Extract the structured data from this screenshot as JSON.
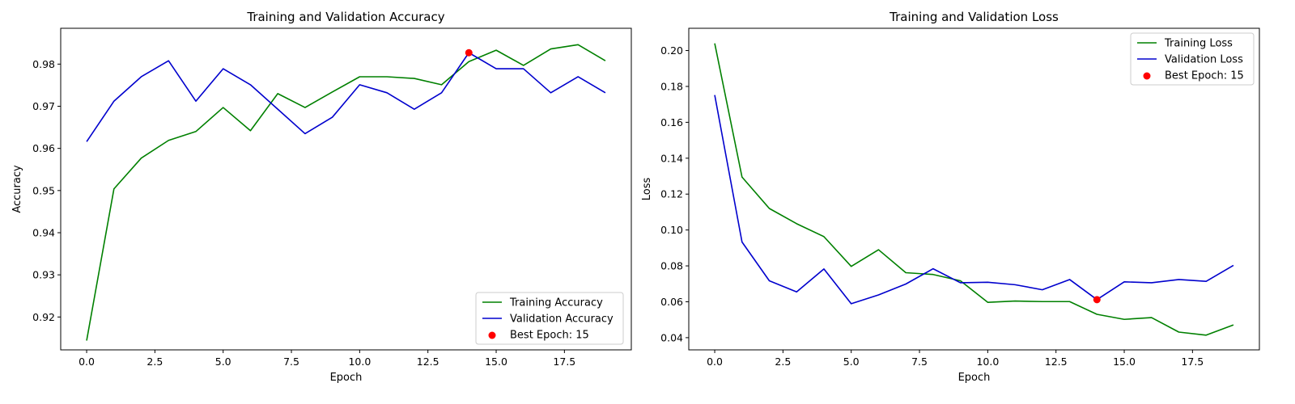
{
  "chart_data": [
    {
      "type": "line",
      "title": "Training and Validation Accuracy",
      "xlabel": "Epoch",
      "ylabel": "Accuracy",
      "xlim": [
        -0.95,
        19.95
      ],
      "ylim": [
        0.9122,
        0.9885
      ],
      "xticks": [
        0,
        2.5,
        5,
        7.5,
        10,
        12.5,
        15,
        17.5
      ],
      "xtick_labels": [
        "0.0",
        "2.5",
        "5.0",
        "7.5",
        "10.0",
        "12.5",
        "15.0",
        "17.5"
      ],
      "yticks": [
        0.92,
        0.93,
        0.94,
        0.95,
        0.96,
        0.97,
        0.98
      ],
      "ytick_labels": [
        "0.92",
        "0.93",
        "0.94",
        "0.95",
        "0.96",
        "0.97",
        "0.98"
      ],
      "legend_position": "bottom-right",
      "grid": false,
      "x": [
        0,
        1,
        2,
        3,
        4,
        5,
        6,
        7,
        8,
        9,
        10,
        11,
        12,
        13,
        14,
        15,
        16,
        17,
        18,
        19
      ],
      "series": [
        {
          "name": "Training Accuracy",
          "color": "#008000",
          "values": [
            0.9144,
            0.9504,
            0.9577,
            0.9619,
            0.964,
            0.9697,
            0.9642,
            0.973,
            0.9697,
            0.9734,
            0.977,
            0.977,
            0.9766,
            0.9751,
            0.9806,
            0.9833,
            0.9797,
            0.9836,
            0.9846,
            0.9808
          ]
        },
        {
          "name": "Validation Accuracy",
          "color": "#0000cd",
          "values": [
            0.9616,
            0.9712,
            0.977,
            0.9808,
            0.9712,
            0.9789,
            0.9751,
            0.9693,
            0.9635,
            0.9674,
            0.9751,
            0.9732,
            0.9693,
            0.9732,
            0.9827,
            0.9789,
            0.9789,
            0.9732,
            0.977,
            0.9732
          ]
        }
      ],
      "marker": {
        "name": "Best Epoch: 15",
        "color": "#ff0000",
        "x": 14,
        "y": 0.9827
      }
    },
    {
      "type": "line",
      "title": "Training and Validation Loss",
      "xlabel": "Epoch",
      "ylabel": "Loss",
      "xlim": [
        -0.95,
        19.95
      ],
      "ylim": [
        0.0332,
        0.2124
      ],
      "xticks": [
        0,
        2.5,
        5,
        7.5,
        10,
        12.5,
        15,
        17.5
      ],
      "xtick_labels": [
        "0.0",
        "2.5",
        "5.0",
        "7.5",
        "10.0",
        "12.5",
        "15.0",
        "17.5"
      ],
      "yticks": [
        0.04,
        0.06,
        0.08,
        0.1,
        0.12,
        0.14,
        0.16,
        0.18,
        0.2
      ],
      "ytick_labels": [
        "0.04",
        "0.06",
        "0.08",
        "0.10",
        "0.12",
        "0.14",
        "0.16",
        "0.18",
        "0.20"
      ],
      "legend_position": "top-right",
      "grid": false,
      "x": [
        0,
        1,
        2,
        3,
        4,
        5,
        6,
        7,
        8,
        9,
        10,
        11,
        12,
        13,
        14,
        15,
        16,
        17,
        18,
        19
      ],
      "series": [
        {
          "name": "Training Loss",
          "color": "#008000",
          "values": [
            0.204,
            0.1295,
            0.112,
            0.1035,
            0.0963,
            0.0797,
            0.089,
            0.0762,
            0.0752,
            0.0717,
            0.0597,
            0.0604,
            0.0601,
            0.0601,
            0.053,
            0.0502,
            0.0512,
            0.0431,
            0.0414,
            0.0471
          ]
        },
        {
          "name": "Validation Loss",
          "color": "#0000cd",
          "values": [
            0.1752,
            0.0933,
            0.0717,
            0.0655,
            0.0783,
            0.0589,
            0.0638,
            0.0699,
            0.0784,
            0.0706,
            0.0709,
            0.0695,
            0.0667,
            0.0724,
            0.0612,
            0.0711,
            0.0706,
            0.0724,
            0.0714,
            0.0803
          ]
        }
      ],
      "marker": {
        "name": "Best Epoch: 15",
        "color": "#ff0000",
        "x": 14,
        "y": 0.0612
      }
    }
  ]
}
